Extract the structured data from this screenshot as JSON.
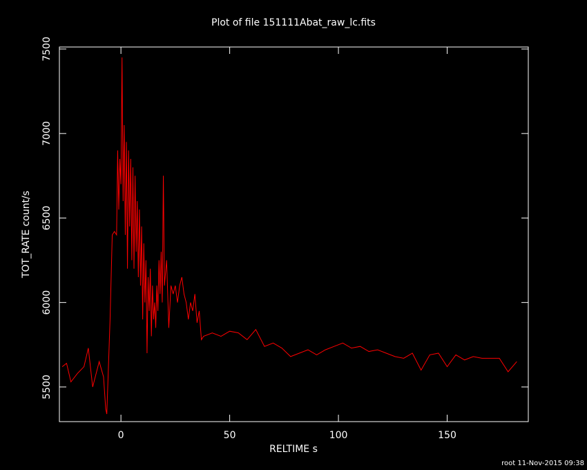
{
  "chart_data": {
    "type": "line",
    "title": "Plot of file 151111Abat_raw_lc.fits",
    "x_label": "RELTIME  s",
    "y_label": "TOT_RATE  count/s",
    "footer": "root 11-Nov-2015 09:38",
    "xlim": [
      -28.3,
      187.3
    ],
    "ylim": [
      5295,
      7512
    ],
    "xticks": [
      0,
      50,
      100,
      150
    ],
    "yticks": [
      5500,
      6000,
      6500,
      7000,
      7500
    ],
    "series": [
      {
        "color": "#ff0000",
        "x": [
          -27,
          -25,
          -23,
          -20,
          -17,
          -15,
          -13,
          -10,
          -8,
          -7,
          -6.5,
          -5,
          -4,
          -3,
          -2,
          -1.5,
          -1,
          -0.5,
          0,
          0.5,
          1,
          1.5,
          2,
          2.5,
          3,
          3.5,
          4,
          4.5,
          5,
          5.5,
          6,
          6.5,
          7,
          7.5,
          8,
          8.5,
          9,
          9.5,
          10,
          10.5,
          11,
          11.5,
          12,
          12.5,
          13,
          13.5,
          14,
          14.5,
          15,
          15.5,
          16,
          16.5,
          17,
          17.5,
          18,
          18.5,
          19,
          19.5,
          20,
          21,
          22,
          23,
          24,
          25,
          26,
          27,
          28,
          29,
          30,
          31,
          32,
          33,
          34,
          35,
          36,
          37,
          38,
          42,
          46,
          50,
          54,
          58,
          62,
          66,
          70,
          74,
          78,
          82,
          86,
          90,
          94,
          98,
          102,
          106,
          110,
          114,
          118,
          122,
          126,
          130,
          134,
          138,
          142,
          146,
          150,
          154,
          158,
          162,
          166,
          170,
          174,
          178,
          182
        ],
        "values": [
          5620,
          5640,
          5530,
          5580,
          5620,
          5730,
          5500,
          5650,
          5560,
          5370,
          5340,
          5900,
          6400,
          6420,
          6400,
          6900,
          6550,
          6850,
          6700,
          7450,
          6600,
          7050,
          6400,
          6950,
          6200,
          6900,
          6450,
          6850,
          6250,
          6800,
          6200,
          6750,
          6300,
          6600,
          6150,
          6550,
          6100,
          6450,
          5900,
          6350,
          6000,
          6250,
          5700,
          6150,
          5950,
          6200,
          5800,
          6100,
          5900,
          6000,
          5850,
          6100,
          5950,
          6250,
          6050,
          6300,
          6000,
          6750,
          6100,
          6250,
          5850,
          6100,
          6050,
          6100,
          6000,
          6100,
          6150,
          6050,
          6000,
          5900,
          6000,
          5950,
          6050,
          5880,
          5950,
          5780,
          5800,
          5820,
          5800,
          5830,
          5820,
          5780,
          5840,
          5740,
          5760,
          5730,
          5680,
          5700,
          5720,
          5690,
          5720,
          5740,
          5760,
          5730,
          5740,
          5710,
          5720,
          5700,
          5680,
          5670,
          5700,
          5600,
          5690,
          5700,
          5620,
          5690,
          5660,
          5680,
          5670,
          5670,
          5670,
          5590,
          5650
        ]
      }
    ]
  }
}
